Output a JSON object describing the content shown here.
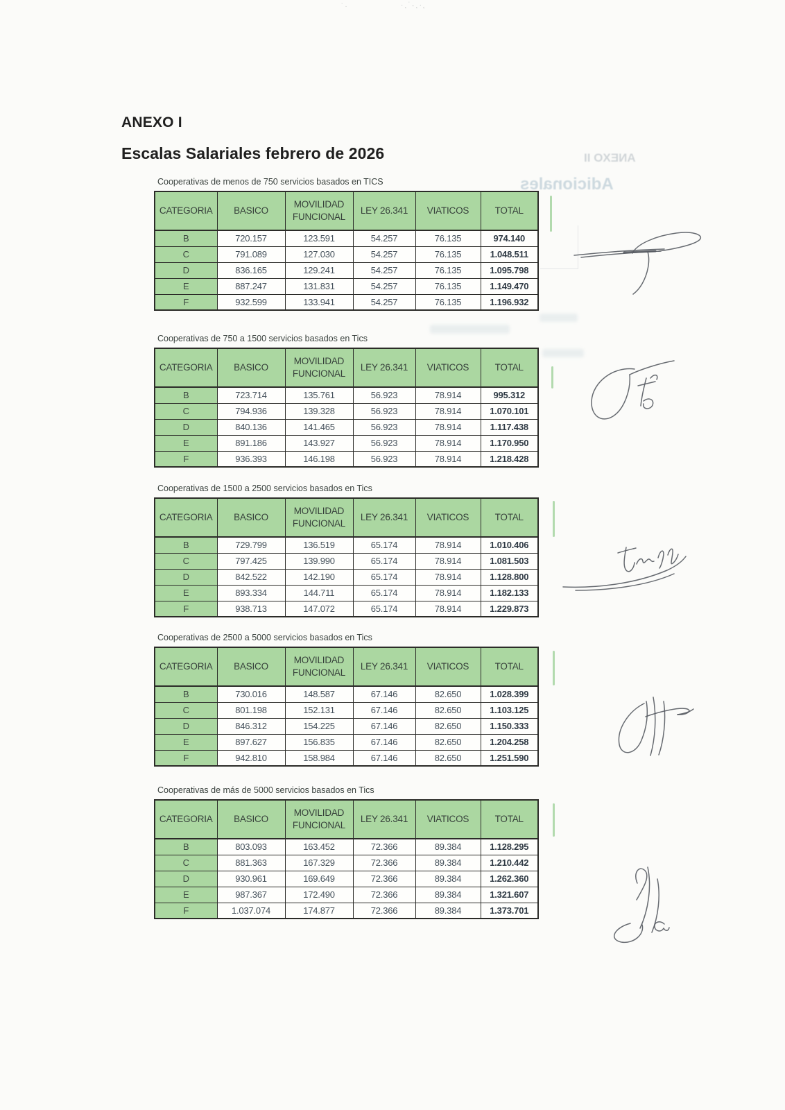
{
  "page": {
    "heading": "ANEXO I",
    "subheading": "Escalas Salariales febrero de 2026"
  },
  "columns": [
    "CATEGORIA",
    "BASICO",
    "MOVILIDAD FUNCIONAL",
    "LEY 26.341",
    "VIATICOS",
    "TOTAL"
  ],
  "tables": [
    {
      "caption": "Cooperativas de menos de 750 servicios basados en TICS",
      "rows": [
        [
          "B",
          "720.157",
          "123.591",
          "54.257",
          "76.135",
          "974.140"
        ],
        [
          "C",
          "791.089",
          "127.030",
          "54.257",
          "76.135",
          "1.048.511"
        ],
        [
          "D",
          "836.165",
          "129.241",
          "54.257",
          "76.135",
          "1.095.798"
        ],
        [
          "E",
          "887.247",
          "131.831",
          "54.257",
          "76.135",
          "1.149.470"
        ],
        [
          "F",
          "932.599",
          "133.941",
          "54.257",
          "76.135",
          "1.196.932"
        ]
      ]
    },
    {
      "caption": "Cooperativas de 750 a 1500 servicios basados en Tics",
      "rows": [
        [
          "B",
          "723.714",
          "135.761",
          "56.923",
          "78.914",
          "995.312"
        ],
        [
          "C",
          "794.936",
          "139.328",
          "56.923",
          "78.914",
          "1.070.101"
        ],
        [
          "D",
          "840.136",
          "141.465",
          "56.923",
          "78.914",
          "1.117.438"
        ],
        [
          "E",
          "891.186",
          "143.927",
          "56.923",
          "78.914",
          "1.170.950"
        ],
        [
          "F",
          "936.393",
          "146.198",
          "56.923",
          "78.914",
          "1.218.428"
        ]
      ]
    },
    {
      "caption": "Cooperativas de 1500 a 2500 servicios basados en Tics",
      "rows": [
        [
          "B",
          "729.799",
          "136.519",
          "65.174",
          "78.914",
          "1.010.406"
        ],
        [
          "C",
          "797.425",
          "139.990",
          "65.174",
          "78.914",
          "1.081.503"
        ],
        [
          "D",
          "842.522",
          "142.190",
          "65.174",
          "78.914",
          "1.128.800"
        ],
        [
          "E",
          "893.334",
          "144.711",
          "65.174",
          "78.914",
          "1.182.133"
        ],
        [
          "F",
          "938.713",
          "147.072",
          "65.174",
          "78.914",
          "1.229.873"
        ]
      ]
    },
    {
      "caption": "Cooperativas de 2500 a 5000  servicios basados en Tics",
      "rows": [
        [
          "B",
          "730.016",
          "148.587",
          "67.146",
          "82.650",
          "1.028.399"
        ],
        [
          "C",
          "801.198",
          "152.131",
          "67.146",
          "82.650",
          "1.103.125"
        ],
        [
          "D",
          "846.312",
          "154.225",
          "67.146",
          "82.650",
          "1.150.333"
        ],
        [
          "E",
          "897.627",
          "156.835",
          "67.146",
          "82.650",
          "1.204.258"
        ],
        [
          "F",
          "942.810",
          "158.984",
          "67.146",
          "82.650",
          "1.251.590"
        ]
      ]
    },
    {
      "caption": "Cooperativas de más de 5000  servicios basados en Tics",
      "rows": [
        [
          "B",
          "803.093",
          "163.452",
          "72.366",
          "89.384",
          "1.128.295"
        ],
        [
          "C",
          "881.363",
          "167.329",
          "72.366",
          "89.384",
          "1.210.442"
        ],
        [
          "D",
          "930.961",
          "169.649",
          "72.366",
          "89.384",
          "1.262.360"
        ],
        [
          "E",
          "987.367",
          "172.490",
          "72.366",
          "89.384",
          "1.321.607"
        ],
        [
          "F",
          "1.037.074",
          "174.877",
          "72.366",
          "89.384",
          "1.373.701"
        ]
      ]
    }
  ],
  "artifacts": {
    "bleed_heading": "ANEXO II",
    "bleed_subheading": "Adicionales",
    "top_marks": [
      "˙·",
      "·¸˙˖¸·˛"
    ]
  },
  "colors": {
    "header_green": "#abd7a1",
    "border": "#2b2b28",
    "number_ink": "#44505a",
    "total_ink": "#2f3a44",
    "heading_ink": "#1f1f1f"
  }
}
